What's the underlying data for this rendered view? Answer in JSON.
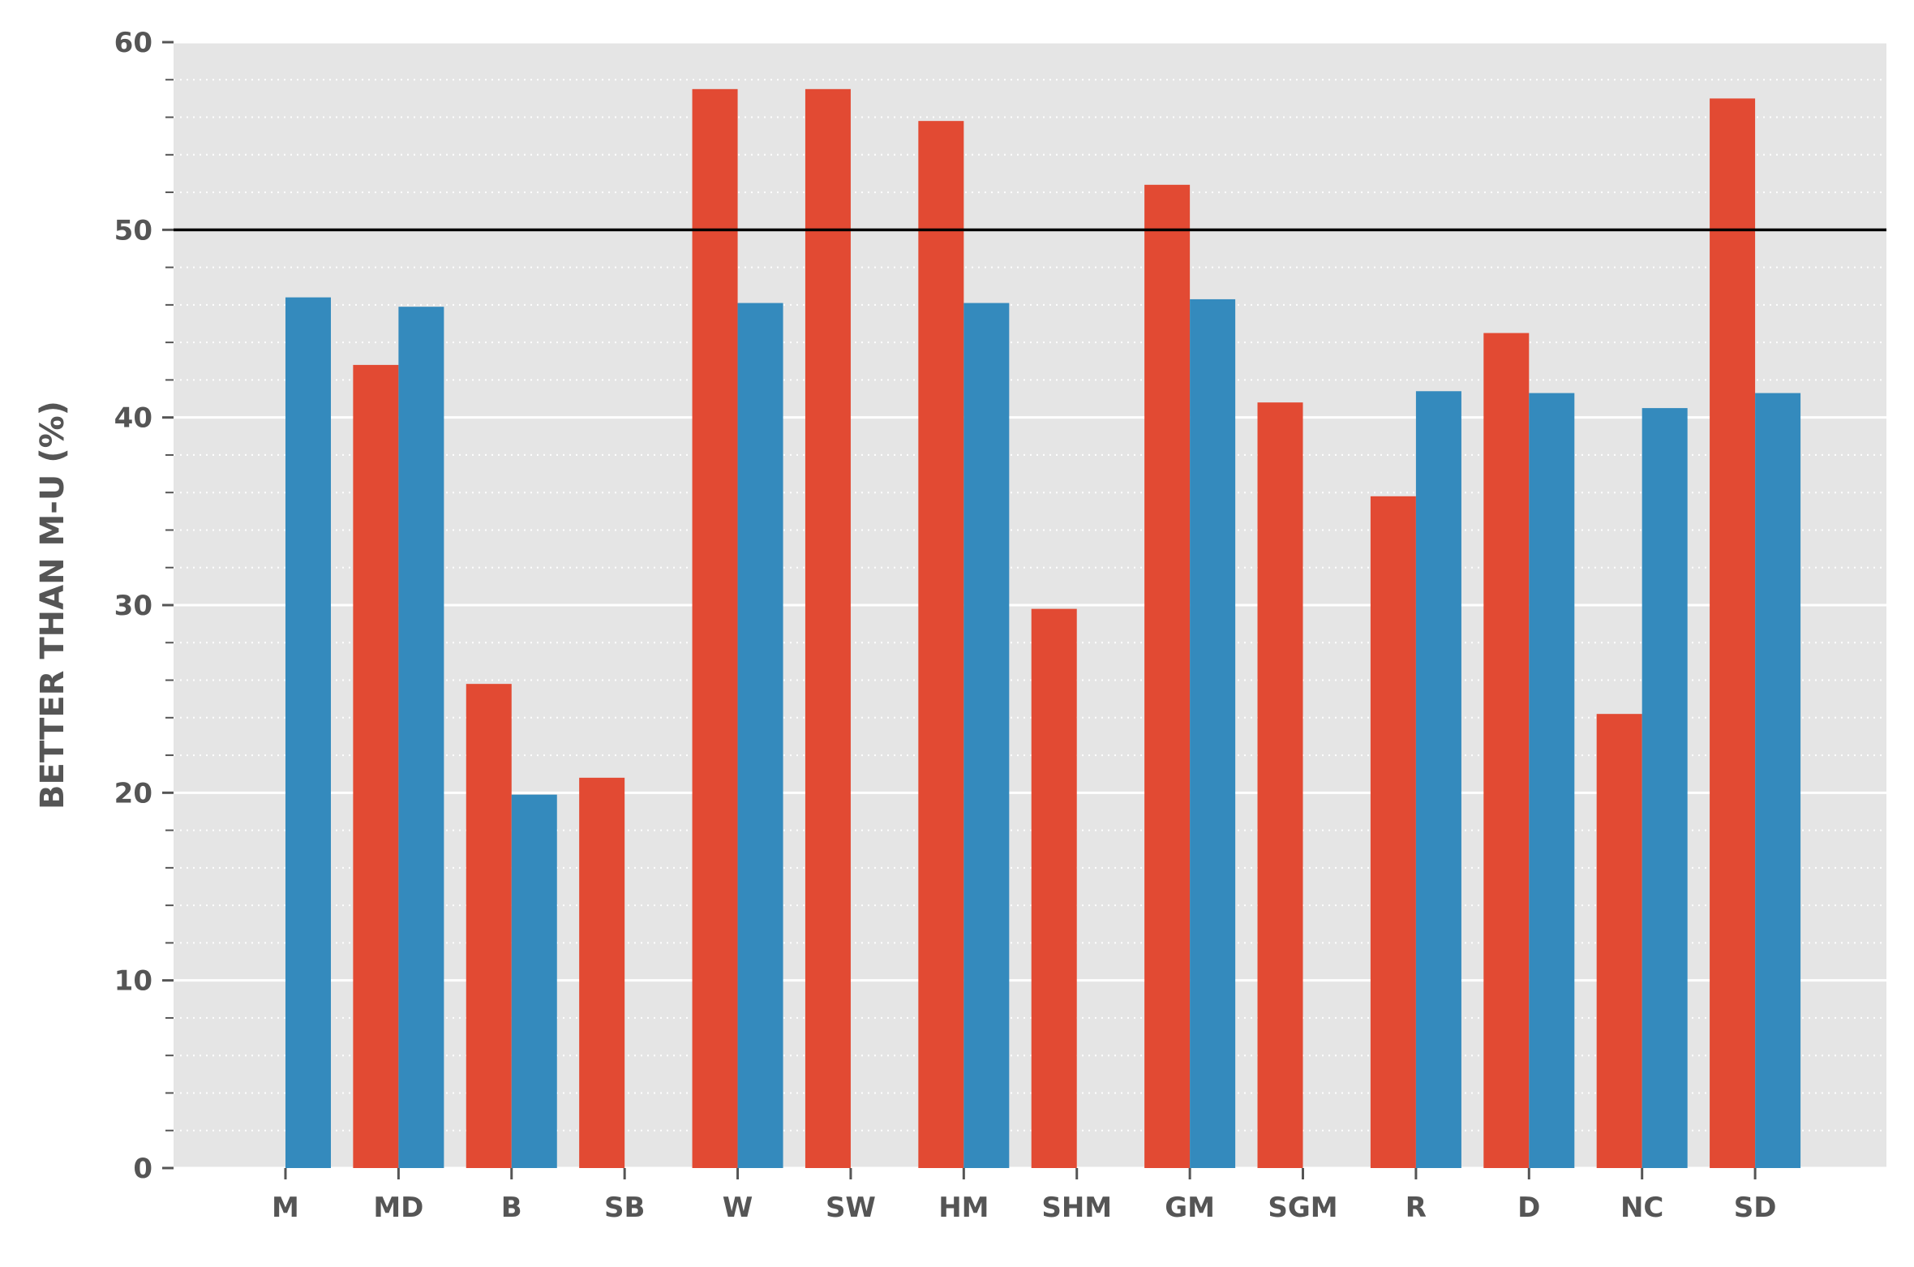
{
  "chart_data": {
    "type": "bar",
    "ylabel": "BETTER THAN M-U (%)",
    "xlabel": "",
    "ylim": [
      0,
      60
    ],
    "yticks": [
      0,
      10,
      20,
      30,
      40,
      50,
      60
    ],
    "minor_ytick_step": 2,
    "grid": true,
    "reference_line": 50,
    "categories": [
      "M",
      "MD",
      "B",
      "SB",
      "W",
      "SW",
      "HM",
      "SHM",
      "GM",
      "SGM",
      "R",
      "D",
      "NC",
      "SD"
    ],
    "series": [
      {
        "color": "#e24a33",
        "values": [
          null,
          42.8,
          25.8,
          20.8,
          57.5,
          57.5,
          55.8,
          29.8,
          52.4,
          40.8,
          35.8,
          44.5,
          24.2,
          57.0
        ]
      },
      {
        "color": "#348abd",
        "values": [
          46.4,
          45.9,
          19.9,
          null,
          46.1,
          null,
          46.1,
          null,
          46.3,
          null,
          41.4,
          41.3,
          40.5,
          41.3
        ]
      }
    ],
    "colors": {
      "plot_background": "#e5e5e5",
      "grid_major": "#ffffff",
      "grid_minor": "#ffffff",
      "reference_line": "#000000",
      "text": "#555555"
    }
  }
}
